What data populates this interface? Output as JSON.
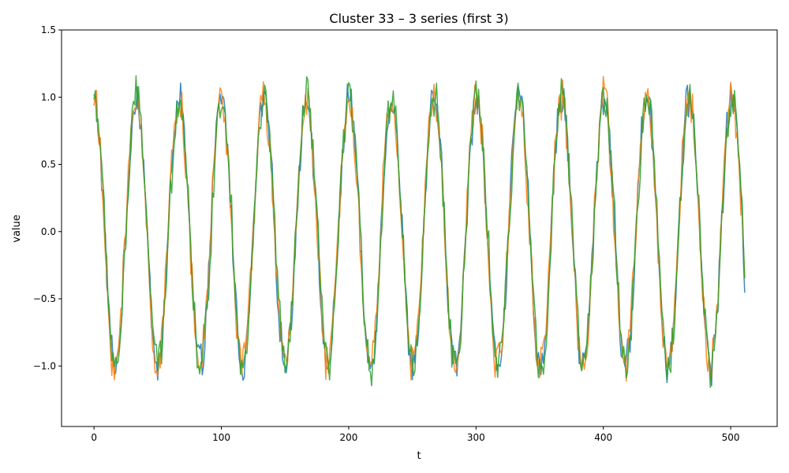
{
  "chart_data": {
    "type": "line",
    "title": "Cluster 33 – 3 series (first 3)",
    "xlabel": "t",
    "ylabel": "value",
    "xlim": [
      -25.5,
      536.5
    ],
    "ylim": [
      -1.45,
      1.5
    ],
    "xticks": [
      0,
      100,
      200,
      300,
      400,
      500
    ],
    "yticks": [
      -1.0,
      -0.5,
      0.0,
      0.5,
      1.0,
      1.5
    ],
    "ytick_labels": [
      "−1.0",
      "−0.5",
      "0.0",
      "0.5",
      "1.0",
      "1.5"
    ],
    "grid": false,
    "legend": "none",
    "n_points": 512,
    "period": 33.4,
    "series": [
      {
        "color": "#1f77b4",
        "phase": 0.02,
        "noise": 0.11
      },
      {
        "color": "#ff7f0e",
        "phase": 0.06,
        "noise": 0.12
      },
      {
        "color": "#2ca02c",
        "phase": -0.03,
        "noise": 0.12
      }
    ]
  }
}
